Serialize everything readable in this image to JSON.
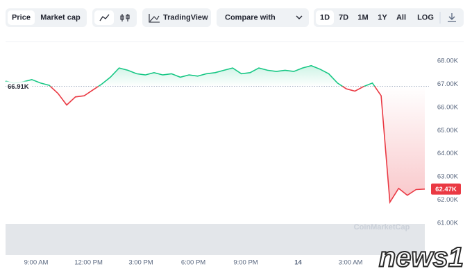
{
  "toolbar": {
    "price": "Price",
    "market_cap": "Market cap",
    "tradingview": "TradingView",
    "compare": "Compare with",
    "ranges": [
      "1D",
      "7D",
      "1M",
      "1Y",
      "All"
    ],
    "log": "LOG"
  },
  "chart_data": {
    "type": "line",
    "x": [
      7.25,
      7.75,
      8.25,
      8.75,
      9.25,
      9.75,
      10.25,
      10.75,
      11.25,
      11.75,
      12.25,
      12.75,
      13.25,
      13.75,
      14.25,
      14.75,
      15.25,
      15.75,
      16.25,
      16.75,
      17.25,
      17.75,
      18.25,
      18.75,
      19.25,
      19.75,
      20.25,
      20.75,
      21.25,
      21.75,
      22.25,
      22.75,
      23.25,
      23.75,
      24.25,
      24.75,
      25.25,
      25.75,
      26.25,
      26.75,
      27.25,
      27.75,
      28.25,
      28.75,
      29.25,
      29.75,
      30.25,
      30.75,
      31.25
    ],
    "values": [
      67.13,
      67.05,
      67.1,
      67.2,
      67.05,
      66.95,
      66.6,
      66.1,
      66.45,
      66.5,
      66.75,
      67.0,
      67.3,
      67.7,
      67.6,
      67.45,
      67.4,
      67.5,
      67.4,
      67.45,
      67.3,
      67.4,
      67.35,
      67.45,
      67.5,
      67.6,
      67.7,
      67.45,
      67.5,
      67.7,
      67.6,
      67.55,
      67.6,
      67.55,
      67.7,
      67.8,
      67.65,
      67.45,
      67.05,
      66.8,
      66.7,
      66.9,
      67.05,
      66.5,
      61.9,
      62.5,
      62.2,
      62.45,
      62.47
    ],
    "color_up": "#16c784",
    "color_down": "#ea3943",
    "xlim": [
      7.25,
      31.25
    ],
    "xticks": [
      {
        "value": 9,
        "label": "9:00 AM"
      },
      {
        "value": 12,
        "label": "12:00 PM"
      },
      {
        "value": 15,
        "label": "3:00 PM"
      },
      {
        "value": 18,
        "label": "6:00 PM"
      },
      {
        "value": 21,
        "label": "9:00 PM"
      },
      {
        "value": 24,
        "label": "14"
      },
      {
        "value": 27,
        "label": "3:00 AM"
      }
    ],
    "ylim": [
      59.62,
      68.84
    ],
    "yticks": [
      {
        "value": 61,
        "label": "61.00K"
      },
      {
        "value": 62,
        "label": "62.00K"
      },
      {
        "value": 63,
        "label": "63.00K"
      },
      {
        "value": 64,
        "label": "64.00K"
      },
      {
        "value": 65,
        "label": "65.00K"
      },
      {
        "value": 66,
        "label": "66.00K"
      },
      {
        "value": 67,
        "label": "67.00K"
      },
      {
        "value": 68,
        "label": "68.00K"
      }
    ],
    "baseline": {
      "value": 66.91,
      "label": "66.91K"
    },
    "last_price": {
      "value": 62.47,
      "label": "62.47K"
    }
  },
  "watermarks": {
    "coinmarketcap": "CoinMarketCap",
    "news": "news1"
  }
}
